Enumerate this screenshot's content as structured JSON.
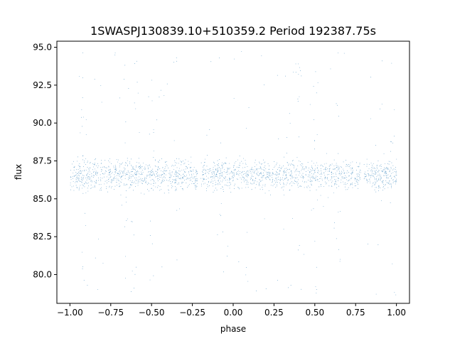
{
  "chart_data": {
    "type": "scatter",
    "title": "1SWASPJ130839.10+510359.2 Period 192387.75s",
    "xlabel": "phase",
    "ylabel": "flux",
    "xlim": [
      -1.08,
      1.08
    ],
    "ylim": [
      78.1,
      95.4
    ],
    "x_ticks": [
      -1.0,
      -0.75,
      -0.5,
      -0.25,
      0.0,
      0.25,
      0.5,
      0.75,
      1.0
    ],
    "x_tick_labels": [
      "−1.00",
      "−0.75",
      "−0.50",
      "−0.25",
      "0.00",
      "0.25",
      "0.50",
      "0.75",
      "1.00"
    ],
    "y_ticks": [
      80.0,
      82.5,
      85.0,
      87.5,
      90.0,
      92.5,
      95.0
    ],
    "y_tick_labels": [
      "80.0",
      "82.5",
      "85.0",
      "87.5",
      "90.0",
      "92.5",
      "95.0"
    ],
    "grid": false,
    "legend": "none",
    "marker_color": "#1f77b4",
    "series": [
      {
        "phase_coverage": [
          [
            -1.0,
            -0.22
          ],
          [
            -0.2,
            0.78
          ],
          [
            0.8,
            1.0
          ]
        ],
        "baseline_flux": 86.6,
        "band_flux_range": [
          85.4,
          87.9
        ],
        "outlier_flux_range": [
          78.5,
          94.8
        ],
        "outlier_clusters_phase": [
          -0.92,
          -0.66,
          -0.6,
          -0.5,
          -0.36,
          -0.08,
          0.08,
          0.34,
          0.4,
          0.5,
          0.64,
          0.9,
          0.98
        ],
        "n_points": 24000
      }
    ]
  }
}
